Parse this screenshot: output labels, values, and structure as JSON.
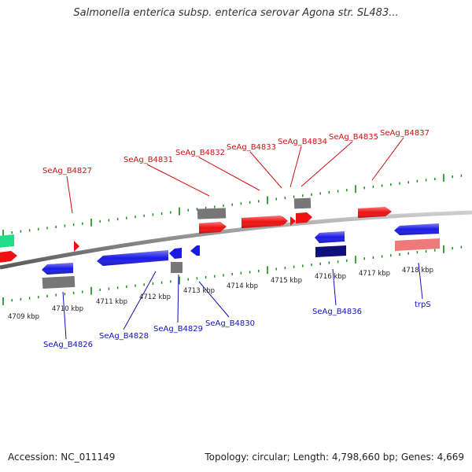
{
  "title": "Salmonella enterica subsp. enterica serovar Agona str. SL483...",
  "footer": {
    "accession": "Accession: NC_011149",
    "summary": "Topology: circular; Length: 4,798,660 bp; Genes: 4,669"
  },
  "colors": {
    "forward_gene": "#ee1111",
    "forward_gene_light": "#ee7a7a",
    "reverse_gene": "#1a1ae6",
    "reverse_gene_dark": "#10107a",
    "green_feature": "#22dd88",
    "other_feature": "#777777",
    "forward_label": "#cc1111",
    "reverse_label": "#1111bb",
    "tick": "#118811",
    "backbone": "#8a8a8a"
  },
  "scale_labels": [
    {
      "text": "4709 kbp"
    },
    {
      "text": "4710 kbp"
    },
    {
      "text": "4711 kbp"
    },
    {
      "text": "4712 kbp"
    },
    {
      "text": "4713 kbp"
    },
    {
      "text": "4714 kbp"
    },
    {
      "text": "4715 kbp"
    },
    {
      "text": "4716 kbp"
    },
    {
      "text": "4717 kbp"
    },
    {
      "text": "4718 kbp"
    }
  ],
  "forward_labels": [
    {
      "text": "SeAg_B4827"
    },
    {
      "text": "SeAg_B4831"
    },
    {
      "text": "SeAg_B4832"
    },
    {
      "text": "SeAg_B4833"
    },
    {
      "text": "SeAg_B4834"
    },
    {
      "text": "SeAg_B4835"
    },
    {
      "text": "SeAg_B4837"
    }
  ],
  "reverse_labels": [
    {
      "text": "SeAg_B4826"
    },
    {
      "text": "SeAg_B4828"
    },
    {
      "text": "SeAg_B4829"
    },
    {
      "text": "SeAg_B4830"
    },
    {
      "text": "SeAg_B4836"
    },
    {
      "text": "trpS"
    }
  ]
}
